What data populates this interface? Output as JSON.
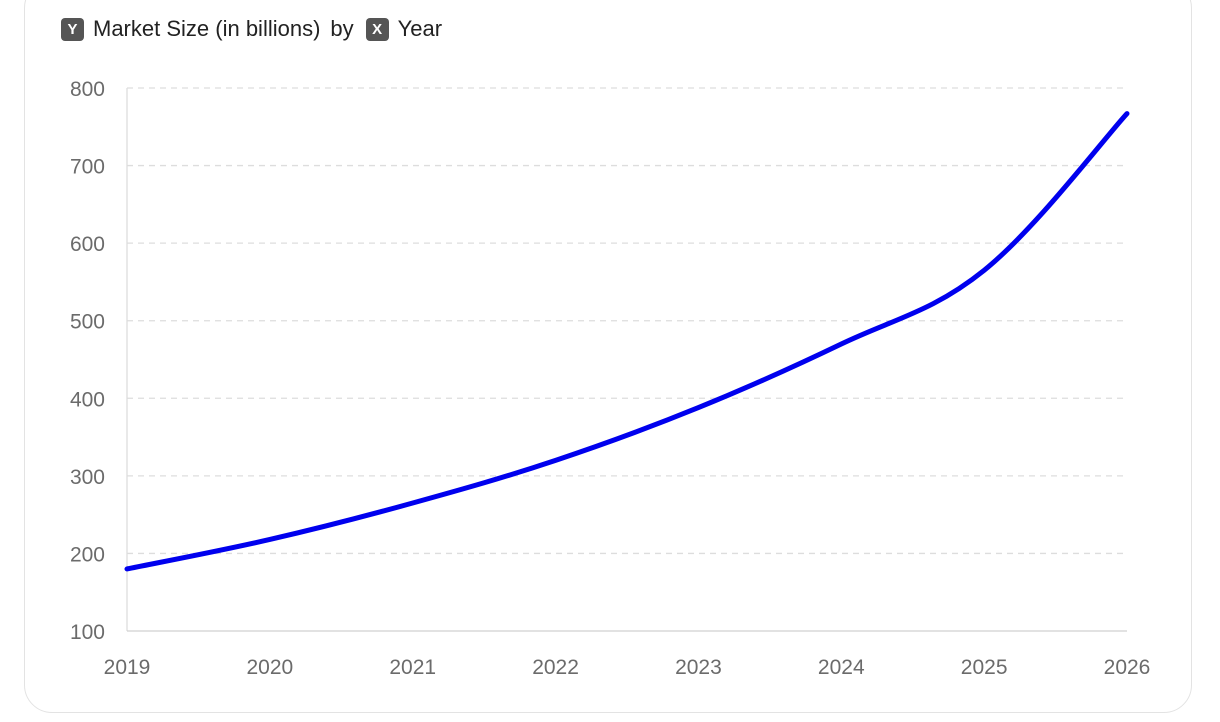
{
  "legend": {
    "y_key": "Y",
    "y_label": "Market Size (in billions)",
    "by": "by",
    "x_key": "X",
    "x_label": "Year"
  },
  "chart_data": {
    "type": "line",
    "title": "",
    "xlabel": "Year",
    "ylabel": "Market Size (in billions)",
    "x": [
      "2019",
      "2020",
      "2021",
      "2022",
      "2023",
      "2024",
      "2025",
      "2026"
    ],
    "series": [
      {
        "values": [
          180,
          218,
          265,
          320,
          388,
          470,
          565,
          767
        ],
        "color": "#0000ee"
      }
    ],
    "ylim": [
      100,
      800
    ],
    "yticks": [
      100,
      200,
      300,
      400,
      500,
      600,
      700,
      800
    ],
    "grid": true,
    "grid_style": "dashed"
  }
}
